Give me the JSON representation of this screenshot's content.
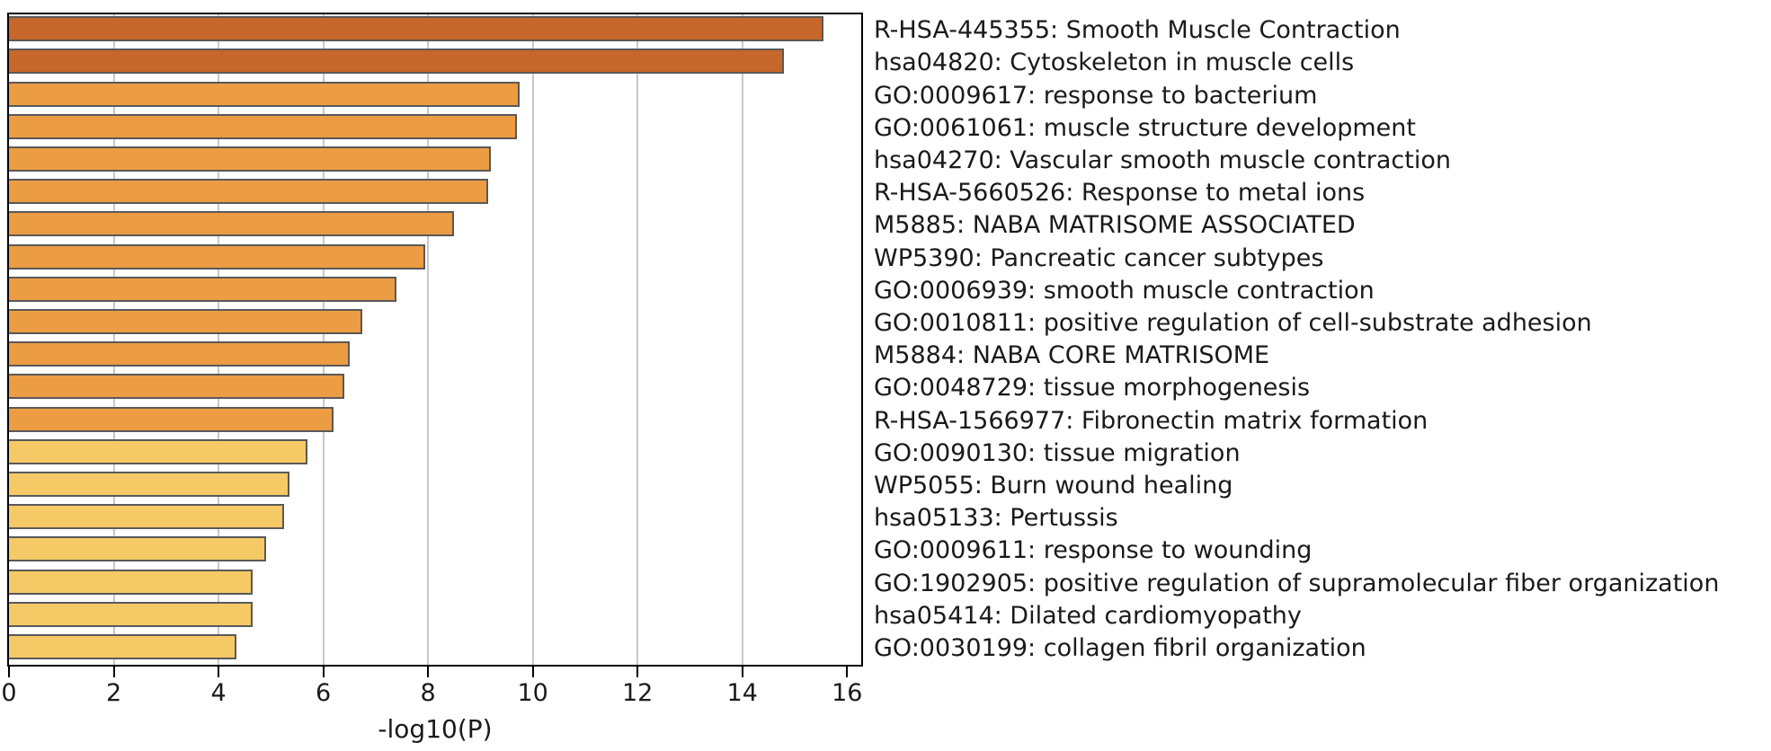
{
  "chart_data": {
    "type": "bar",
    "orientation": "horizontal",
    "title": "",
    "xlabel": "-log10(P)",
    "ylabel": "",
    "xlim": [
      0,
      16.27
    ],
    "xticks": [
      0,
      2,
      4,
      6,
      8,
      10,
      12,
      14,
      16
    ],
    "grid_ticks": [
      2,
      4,
      6,
      8,
      10,
      12,
      14
    ],
    "grid": true,
    "legend_position": "none",
    "categories": [
      "R-HSA-445355: Smooth Muscle Contraction",
      "hsa04820: Cytoskeleton in muscle cells",
      "GO:0009617: response to bacterium",
      "GO:0061061: muscle structure development",
      "hsa04270: Vascular smooth muscle contraction",
      "R-HSA-5660526: Response to metal ions",
      "M5885: NABA MATRISOME ASSOCIATED",
      "WP5390: Pancreatic cancer subtypes",
      "GO:0006939: smooth muscle contraction",
      "GO:0010811: positive regulation of cell-substrate adhesion",
      "M5884: NABA CORE MATRISOME",
      "GO:0048729: tissue morphogenesis",
      "R-HSA-1566977: Fibronectin matrix formation",
      "GO:0090130: tissue migration",
      "WP5055: Burn wound healing",
      "hsa05133: Pertussis",
      "GO:0009611: response to wounding",
      "GO:1902905: positive regulation of supramolecular fiber organization",
      "hsa05414: Dilated cardiomyopathy",
      "GO:0030199: collagen fibril organization"
    ],
    "values": [
      15.55,
      14.8,
      9.75,
      9.7,
      9.2,
      9.15,
      8.5,
      7.95,
      7.4,
      6.75,
      6.5,
      6.4,
      6.2,
      5.7,
      5.35,
      5.25,
      4.9,
      4.65,
      4.65,
      4.35
    ],
    "color_bins": [
      {
        "min_value": 10,
        "color": "#C6672B",
        "label": "10-20"
      },
      {
        "min_value": 6,
        "color": "#EC9C42",
        "label": "6-10"
      },
      {
        "min_value": 0,
        "color": "#F5C966",
        "label": "4-6"
      }
    ],
    "bar_border_color": "#595959",
    "grid_color": "#C8C8C8",
    "axis_color": "#000000"
  }
}
